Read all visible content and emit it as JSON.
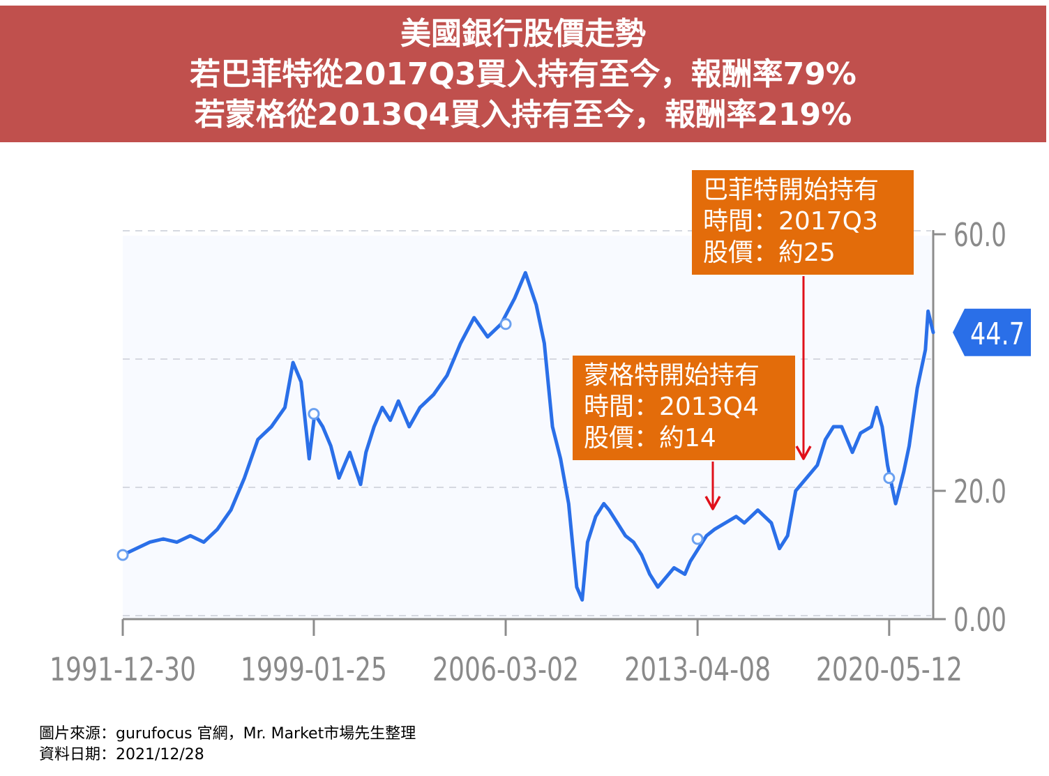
{
  "banner": {
    "line1": "美國銀行股價走勢",
    "line2": "若巴菲特從2017Q3買入持有至今，報酬率79%",
    "line3": "若蒙格從2013Q4買入持有至今，報酬率219%"
  },
  "callouts": {
    "buffett": {
      "line1": "巴菲特開始持有",
      "line2": "時間：2017Q3",
      "line3": "股價：約25"
    },
    "munger": {
      "line1": "蒙格特開始持有",
      "line2": "時間：2013Q4",
      "line3": "股價：約14"
    }
  },
  "footer": {
    "source": "圖片來源：gurufocus 官網，Mr. Market市場先生整理",
    "date": "資料日期：2021/12/28"
  },
  "colors": {
    "banner": "#c0504d",
    "line": "#2a6fe8",
    "callout": "#e36c0a",
    "arrow": "#e0101a",
    "axis": "#8c8c8c"
  },
  "chart_data": {
    "type": "line",
    "title": "",
    "xlabel": "",
    "ylabel": "",
    "x_ticks": [
      "1991-12-30",
      "1999-01-25",
      "2006-03-02",
      "2013-04-08",
      "2020-05-12"
    ],
    "y_ticks": [
      "0.00",
      "20.0",
      "60.0"
    ],
    "ylim": [
      0,
      60
    ],
    "current_value_label": "44.7",
    "grid": "dashed horizontal",
    "series": [
      {
        "x": [
          1992.0,
          1992.5,
          1993.0,
          1993.5,
          1994.0,
          1994.5,
          1995.0,
          1995.5,
          1996.0,
          1996.5,
          1997.0,
          1997.5,
          1998.0,
          1998.3,
          1998.6,
          1998.9,
          1999.1,
          1999.4,
          1999.7,
          2000.0,
          2000.4,
          2000.8,
          2001.0,
          2001.3,
          2001.6,
          2001.9,
          2002.2,
          2002.6,
          2003.0,
          2003.5,
          2004.0,
          2004.5,
          2005.0,
          2005.5,
          2006.0,
          2006.5,
          2006.9,
          2007.3,
          2007.6,
          2007.9,
          2008.2,
          2008.5,
          2008.8,
          2009.0,
          2009.2,
          2009.5,
          2009.8,
          2010.0,
          2010.3,
          2010.6,
          2010.9,
          2011.2,
          2011.5,
          2011.8,
          2012.0,
          2012.4,
          2012.8,
          2013.0,
          2013.3,
          2013.6,
          2013.9,
          2014.3,
          2014.7,
          2015.0,
          2015.5,
          2016.0,
          2016.3,
          2016.6,
          2016.9,
          2017.3,
          2017.7,
          2018.0,
          2018.3,
          2018.6,
          2019.0,
          2019.3,
          2019.7,
          2019.9,
          2020.1,
          2020.3,
          2020.6,
          2020.9,
          2021.1,
          2021.4,
          2021.7,
          2021.8,
          2021.99
        ],
        "y": [
          10,
          11,
          12,
          12.5,
          12,
          13,
          12,
          14,
          17,
          22,
          28,
          30,
          33,
          40,
          37,
          25,
          32,
          30,
          27,
          22,
          26,
          21,
          26,
          30,
          33,
          31,
          34,
          30,
          33,
          35,
          38,
          43,
          47,
          44,
          46,
          50,
          54,
          49,
          43,
          30,
          25,
          18,
          5,
          3,
          12,
          16,
          18,
          17,
          15,
          13,
          12,
          10,
          7,
          5,
          6,
          8,
          7,
          9,
          11,
          13,
          14,
          15,
          16,
          15,
          17,
          15,
          11,
          13,
          20,
          22,
          24,
          28,
          30,
          30,
          26,
          29,
          30,
          33,
          30,
          24,
          18,
          23,
          27,
          36,
          42,
          48,
          44.7
        ]
      }
    ]
  }
}
